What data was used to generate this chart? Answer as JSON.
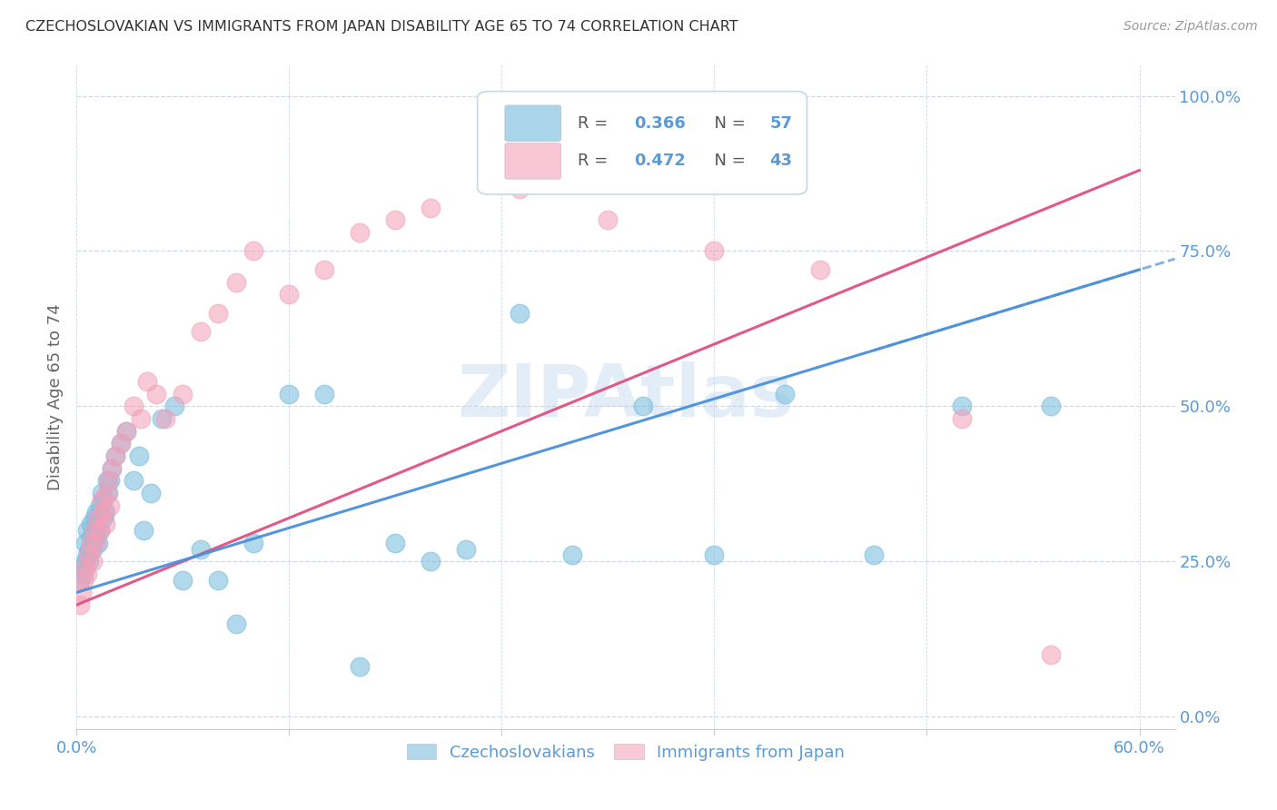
{
  "title": "CZECHOSLOVAKIAN VS IMMIGRANTS FROM JAPAN DISABILITY AGE 65 TO 74 CORRELATION CHART",
  "source": "Source: ZipAtlas.com",
  "ylabel": "Disability Age 65 to 74",
  "xlim": [
    0.0,
    0.62
  ],
  "ylim": [
    -0.02,
    1.05
  ],
  "xtick_positions": [
    0.0,
    0.12,
    0.24,
    0.36,
    0.48,
    0.6
  ],
  "xtick_labels": [
    "0.0%",
    "",
    "",
    "",
    "",
    "60.0%"
  ],
  "ytick_positions": [
    0.0,
    0.25,
    0.5,
    0.75,
    1.0
  ],
  "ytick_labels": [
    "0.0%",
    "25.0%",
    "50.0%",
    "75.0%",
    "100.0%"
  ],
  "blue_color": "#7fbfdf",
  "blue_line_color": "#4a90d9",
  "pink_color": "#f4a0b8",
  "pink_line_color": "#e05080",
  "axis_label_color": "#5b9bd5",
  "grid_color": "#d0d8e8",
  "watermark_color": "#b8d4ee",
  "czech_x": [
    0.002,
    0.003,
    0.004,
    0.005,
    0.005,
    0.006,
    0.006,
    0.007,
    0.007,
    0.008,
    0.008,
    0.009,
    0.009,
    0.01,
    0.01,
    0.011,
    0.011,
    0.012,
    0.012,
    0.013,
    0.013,
    0.014,
    0.015,
    0.015,
    0.016,
    0.017,
    0.018,
    0.019,
    0.02,
    0.022,
    0.025,
    0.028,
    0.032,
    0.035,
    0.038,
    0.042,
    0.048,
    0.055,
    0.06,
    0.07,
    0.08,
    0.09,
    0.1,
    0.12,
    0.14,
    0.16,
    0.18,
    0.2,
    0.22,
    0.25,
    0.28,
    0.32,
    0.36,
    0.4,
    0.45,
    0.5,
    0.55
  ],
  "czech_y": [
    0.22,
    0.24,
    0.23,
    0.25,
    0.28,
    0.26,
    0.3,
    0.27,
    0.25,
    0.29,
    0.31,
    0.28,
    0.27,
    0.3,
    0.32,
    0.29,
    0.33,
    0.31,
    0.28,
    0.34,
    0.3,
    0.36,
    0.32,
    0.35,
    0.33,
    0.38,
    0.36,
    0.38,
    0.4,
    0.42,
    0.44,
    0.46,
    0.38,
    0.42,
    0.3,
    0.36,
    0.48,
    0.5,
    0.22,
    0.27,
    0.22,
    0.15,
    0.28,
    0.52,
    0.52,
    0.08,
    0.28,
    0.25,
    0.27,
    0.65,
    0.26,
    0.5,
    0.26,
    0.52,
    0.26,
    0.5,
    0.5
  ],
  "japan_x": [
    0.002,
    0.003,
    0.004,
    0.005,
    0.006,
    0.007,
    0.008,
    0.009,
    0.01,
    0.011,
    0.012,
    0.013,
    0.014,
    0.015,
    0.016,
    0.017,
    0.018,
    0.019,
    0.02,
    0.022,
    0.025,
    0.028,
    0.032,
    0.036,
    0.04,
    0.045,
    0.05,
    0.06,
    0.07,
    0.08,
    0.09,
    0.1,
    0.12,
    0.14,
    0.16,
    0.18,
    0.2,
    0.25,
    0.3,
    0.36,
    0.42,
    0.5,
    0.55
  ],
  "japan_y": [
    0.18,
    0.2,
    0.22,
    0.24,
    0.23,
    0.26,
    0.28,
    0.25,
    0.3,
    0.28,
    0.32,
    0.3,
    0.35,
    0.33,
    0.31,
    0.36,
    0.38,
    0.34,
    0.4,
    0.42,
    0.44,
    0.46,
    0.5,
    0.48,
    0.54,
    0.52,
    0.48,
    0.52,
    0.62,
    0.65,
    0.7,
    0.75,
    0.68,
    0.72,
    0.78,
    0.8,
    0.82,
    0.85,
    0.8,
    0.75,
    0.72,
    0.48,
    0.1
  ],
  "blue_trend_x0": 0.0,
  "blue_trend_y0": 0.2,
  "blue_trend_x1": 0.6,
  "blue_trend_y1": 0.72,
  "pink_trend_x0": 0.0,
  "pink_trend_y0": 0.18,
  "pink_trend_x1": 0.6,
  "pink_trend_y1": 0.88
}
